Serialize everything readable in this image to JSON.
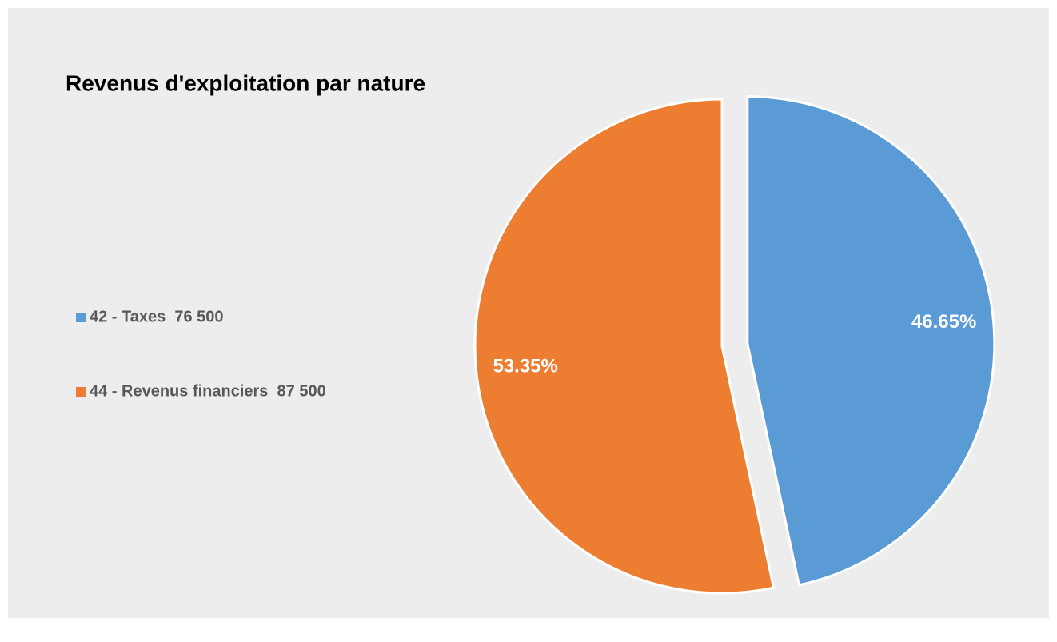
{
  "chart_data": {
    "type": "pie",
    "title": "Revenus d'exploitation par nature",
    "categories": [
      "42 - Taxes  76 500",
      "44 - Revenus financiers  87 500"
    ],
    "values": [
      46.65,
      53.35
    ],
    "value_labels": [
      "46.65%",
      "53.35%"
    ],
    "colors": [
      "#5b9bd5",
      "#ed7d31"
    ],
    "legend": "left"
  }
}
